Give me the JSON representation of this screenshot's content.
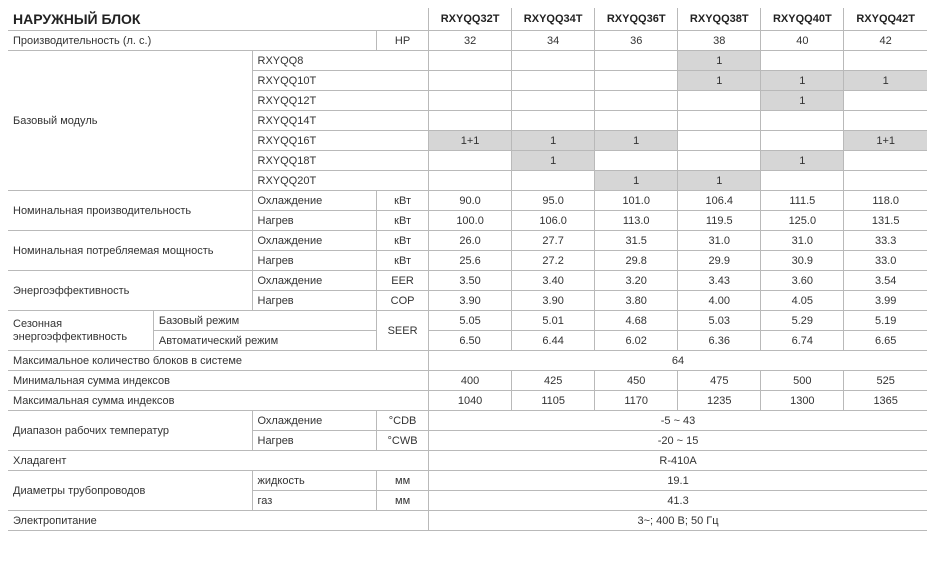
{
  "title": "НАРУЖНЫЙ БЛОК",
  "models": [
    "RXYQQ32T",
    "RXYQQ34T",
    "RXYQQ36T",
    "RXYQQ38T",
    "RXYQQ40T",
    "RXYQQ42T"
  ],
  "labels": {
    "hp": "Производительность (л. с.)",
    "hp_unit": "HP",
    "base": "Базовый модуль",
    "nom_cap": "Номинальная производительность",
    "nom_pow": "Номинальная потребляемая мощность",
    "eff": "Энергоэффективность",
    "seasonal1": "Сезонная",
    "seasonal2": "энергоэффективность",
    "cool": "Охлаждение",
    "heat": "Нагрев",
    "base_mode": "Базовый режим",
    "auto_mode": "Автоматический режим",
    "max_blocks": "Максимальное количество блоков в системе",
    "min_idx": "Минимальная сумма индексов",
    "max_idx": "Максимальная сумма индексов",
    "op_range": "Диапазон рабочих температур",
    "refrig": "Хладагент",
    "pipe": "Диаметры трубопроводов",
    "liquid": "жидкость",
    "gas": "газ",
    "power": "Электропитание",
    "kw": "кВт",
    "eer": "EER",
    "cop": "COP",
    "seer": "SEER",
    "cdb": "°CDB",
    "cwb": "°CWB",
    "mm": "мм"
  },
  "base_modules": [
    "RXYQQ8",
    "RXYQQ10T",
    "RXYQQ12T",
    "RXYQQ14T",
    "RXYQQ16T",
    "RXYQQ18T",
    "RXYQQ20T"
  ],
  "hp_vals": [
    "32",
    "34",
    "36",
    "38",
    "40",
    "42"
  ],
  "module_cells": [
    [
      "",
      "",
      "",
      "1",
      "",
      ""
    ],
    [
      "",
      "",
      "",
      "1",
      "1",
      "1"
    ],
    [
      "",
      "",
      "",
      "",
      "1",
      ""
    ],
    [
      "",
      "",
      "",
      "",
      "",
      ""
    ],
    [
      "1+1",
      "1",
      "1",
      "",
      "",
      "1+1"
    ],
    [
      "",
      "1",
      "",
      "",
      "1",
      ""
    ],
    [
      "",
      "",
      "1",
      "1",
      "",
      ""
    ]
  ],
  "module_shaded": [
    [
      0,
      0,
      0,
      1,
      0,
      0
    ],
    [
      0,
      0,
      0,
      1,
      1,
      1
    ],
    [
      0,
      0,
      0,
      0,
      1,
      0
    ],
    [
      0,
      0,
      0,
      0,
      0,
      0
    ],
    [
      1,
      1,
      1,
      0,
      0,
      1
    ],
    [
      0,
      1,
      0,
      0,
      1,
      0
    ],
    [
      0,
      0,
      1,
      1,
      0,
      0
    ]
  ],
  "cap_cool": [
    "90.0",
    "95.0",
    "101.0",
    "106.4",
    "111.5",
    "118.0"
  ],
  "cap_heat": [
    "100.0",
    "106.0",
    "113.0",
    "119.5",
    "125.0",
    "131.5"
  ],
  "pow_cool": [
    "26.0",
    "27.7",
    "31.5",
    "31.0",
    "31.0",
    "33.3"
  ],
  "pow_heat": [
    "25.6",
    "27.2",
    "29.8",
    "29.9",
    "30.9",
    "33.0"
  ],
  "eff_eer": [
    "3.50",
    "3.40",
    "3.20",
    "3.43",
    "3.60",
    "3.54"
  ],
  "eff_cop": [
    "3.90",
    "3.90",
    "3.80",
    "4.00",
    "4.05",
    "3.99"
  ],
  "seer_base": [
    "5.05",
    "5.01",
    "4.68",
    "5.03",
    "5.29",
    "5.19"
  ],
  "seer_auto": [
    "6.50",
    "6.44",
    "6.02",
    "6.36",
    "6.74",
    "6.65"
  ],
  "max_blocks_val": "64",
  "min_idx_vals": [
    "400",
    "425",
    "450",
    "475",
    "500",
    "525"
  ],
  "max_idx_vals": [
    "1040",
    "1105",
    "1170",
    "1235",
    "1300",
    "1365"
  ],
  "range_cool": "-5 ~ 43",
  "range_heat": "-20 ~ 15",
  "refrig_val": "R-410A",
  "pipe_liquid": "19.1",
  "pipe_gas": "41.3",
  "power_val": "3~; 400 В; 50 Гц"
}
